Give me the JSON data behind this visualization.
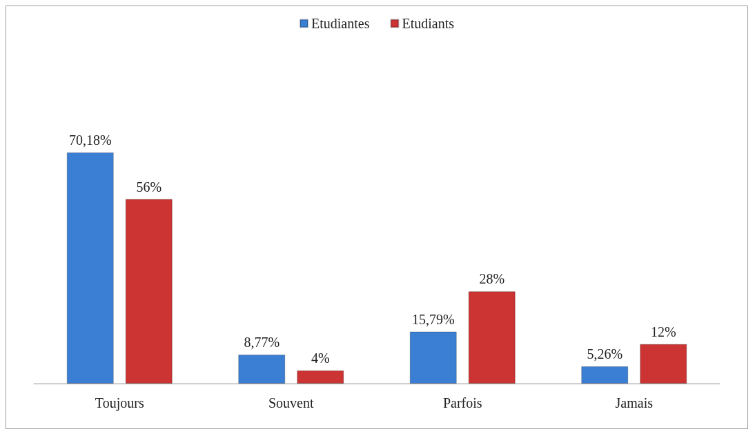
{
  "chart_data": {
    "type": "bar",
    "categories": [
      "Toujours",
      "Souvent",
      "Parfois",
      "Jamais"
    ],
    "series": [
      {
        "name": "Etudiantes",
        "color": "#3b7fd4",
        "values": [
          70.18,
          8.77,
          15.79,
          5.26
        ],
        "value_labels": [
          "70,18%",
          "8,77%",
          "15,79%",
          "5,26%"
        ]
      },
      {
        "name": "Etudiants",
        "color": "#cc3333",
        "values": [
          56,
          4,
          28,
          12
        ],
        "value_labels": [
          "56%",
          "4%",
          "28%",
          "12%"
        ]
      }
    ],
    "legend": "top"
  }
}
